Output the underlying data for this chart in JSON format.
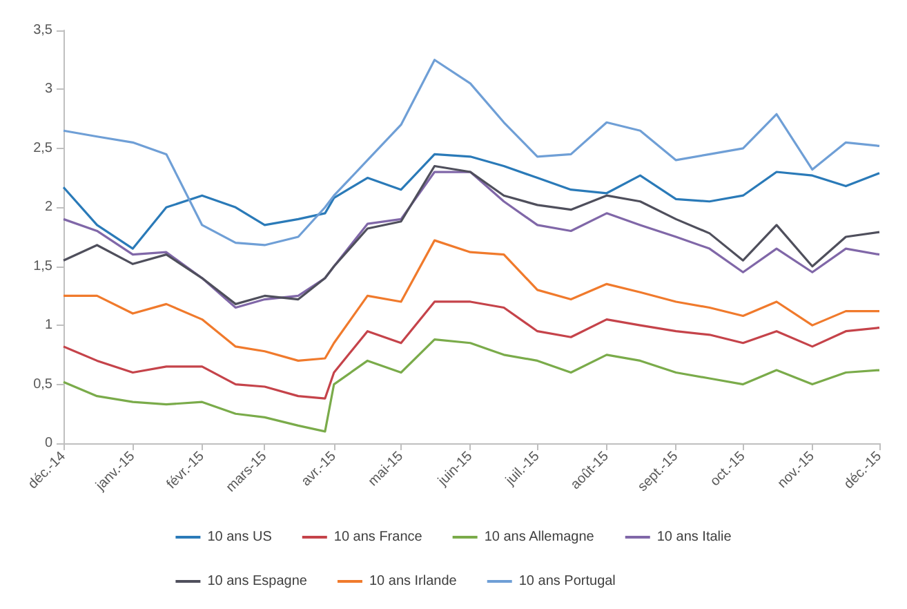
{
  "chart_data": {
    "type": "line",
    "x": [
      "2014-12-01",
      "2014-12-16",
      "2015-01-01",
      "2015-01-16",
      "2015-02-01",
      "2015-02-16",
      "2015-03-01",
      "2015-03-16",
      "2015-03-28",
      "2015-04-01",
      "2015-04-16",
      "2015-05-01",
      "2015-05-16",
      "2015-06-01",
      "2015-06-16",
      "2015-07-01",
      "2015-07-16",
      "2015-08-01",
      "2015-08-16",
      "2015-09-01",
      "2015-09-16",
      "2015-10-01",
      "2015-10-16",
      "2015-11-01",
      "2015-11-16",
      "2015-12-01"
    ],
    "series": [
      {
        "name": "10 ans US",
        "color": "#2a7ab8",
        "values": [
          2.17,
          1.85,
          1.65,
          2.0,
          2.1,
          2.0,
          1.85,
          1.9,
          1.95,
          2.08,
          2.25,
          2.15,
          2.45,
          2.43,
          2.35,
          2.25,
          2.15,
          2.12,
          2.27,
          2.07,
          2.05,
          2.1,
          2.3,
          2.27,
          2.18,
          2.29
        ]
      },
      {
        "name": "10 ans France",
        "color": "#c5434a",
        "values": [
          0.82,
          0.7,
          0.6,
          0.65,
          0.65,
          0.5,
          0.48,
          0.4,
          0.38,
          0.6,
          0.95,
          0.85,
          1.2,
          1.2,
          1.15,
          0.95,
          0.9,
          1.05,
          1.0,
          0.95,
          0.92,
          0.85,
          0.95,
          0.82,
          0.95,
          0.98
        ]
      },
      {
        "name": "10 ans Allemagne",
        "color": "#7aab4a",
        "values": [
          0.52,
          0.4,
          0.35,
          0.33,
          0.35,
          0.25,
          0.22,
          0.15,
          0.1,
          0.5,
          0.7,
          0.6,
          0.88,
          0.85,
          0.75,
          0.7,
          0.6,
          0.75,
          0.7,
          0.6,
          0.55,
          0.5,
          0.62,
          0.5,
          0.6,
          0.62
        ]
      },
      {
        "name": "10 ans Italie",
        "color": "#8067a8",
        "values": [
          1.9,
          1.8,
          1.6,
          1.62,
          1.4,
          1.15,
          1.22,
          1.25,
          1.4,
          1.5,
          1.86,
          1.9,
          2.3,
          2.3,
          2.05,
          1.85,
          1.8,
          1.95,
          1.85,
          1.75,
          1.65,
          1.45,
          1.65,
          1.45,
          1.65,
          1.6
        ]
      },
      {
        "name": "10 ans Espagne",
        "color": "#4f4f5c",
        "values": [
          1.55,
          1.68,
          1.52,
          1.6,
          1.4,
          1.18,
          1.25,
          1.22,
          1.4,
          1.5,
          1.82,
          1.88,
          2.35,
          2.3,
          2.1,
          2.02,
          1.98,
          2.1,
          2.05,
          1.9,
          1.78,
          1.55,
          1.85,
          1.5,
          1.75,
          1.79
        ]
      },
      {
        "name": "10 ans Irlande",
        "color": "#f07a2c",
        "values": [
          1.25,
          1.25,
          1.1,
          1.18,
          1.05,
          0.82,
          0.78,
          0.7,
          0.72,
          0.85,
          1.25,
          1.2,
          1.72,
          1.62,
          1.6,
          1.3,
          1.22,
          1.35,
          1.28,
          1.2,
          1.15,
          1.08,
          1.2,
          1.0,
          1.12,
          1.12
        ]
      },
      {
        "name": "10 ans Portugal",
        "color": "#6f9fd6",
        "values": [
          2.65,
          2.6,
          2.55,
          2.45,
          1.85,
          1.7,
          1.68,
          1.75,
          2.0,
          2.1,
          2.4,
          2.7,
          3.25,
          3.05,
          2.72,
          2.43,
          2.45,
          2.72,
          2.65,
          2.4,
          2.45,
          2.5,
          2.79,
          2.32,
          2.55,
          2.52
        ]
      }
    ],
    "xlim": [
      "2014-12-01",
      "2015-12-01"
    ],
    "xticks": [
      {
        "value": "2014-12-01",
        "label": "déc.-14"
      },
      {
        "value": "2015-01-01",
        "label": "janv.-15"
      },
      {
        "value": "2015-02-01",
        "label": "févr.-15"
      },
      {
        "value": "2015-03-01",
        "label": "mars-15"
      },
      {
        "value": "2015-04-01",
        "label": "avr.-15"
      },
      {
        "value": "2015-05-01",
        "label": "mai-15"
      },
      {
        "value": "2015-06-01",
        "label": "juin-15"
      },
      {
        "value": "2015-07-01",
        "label": "juil.-15"
      },
      {
        "value": "2015-08-01",
        "label": "août-15"
      },
      {
        "value": "2015-09-01",
        "label": "sept.-15"
      },
      {
        "value": "2015-10-01",
        "label": "oct.-15"
      },
      {
        "value": "2015-11-01",
        "label": "nov.-15"
      },
      {
        "value": "2015-12-01",
        "label": "déc.-15"
      }
    ],
    "ylim": [
      0,
      3.5
    ],
    "yticks": [
      0,
      {
        "value": 0.5,
        "label": "0,5"
      },
      1,
      {
        "value": 1.5,
        "label": "1,5"
      },
      2,
      {
        "value": 2.5,
        "label": "2,5"
      },
      3,
      {
        "value": 3.5,
        "label": "3,5"
      }
    ],
    "grid": false,
    "legend": "bottom"
  }
}
